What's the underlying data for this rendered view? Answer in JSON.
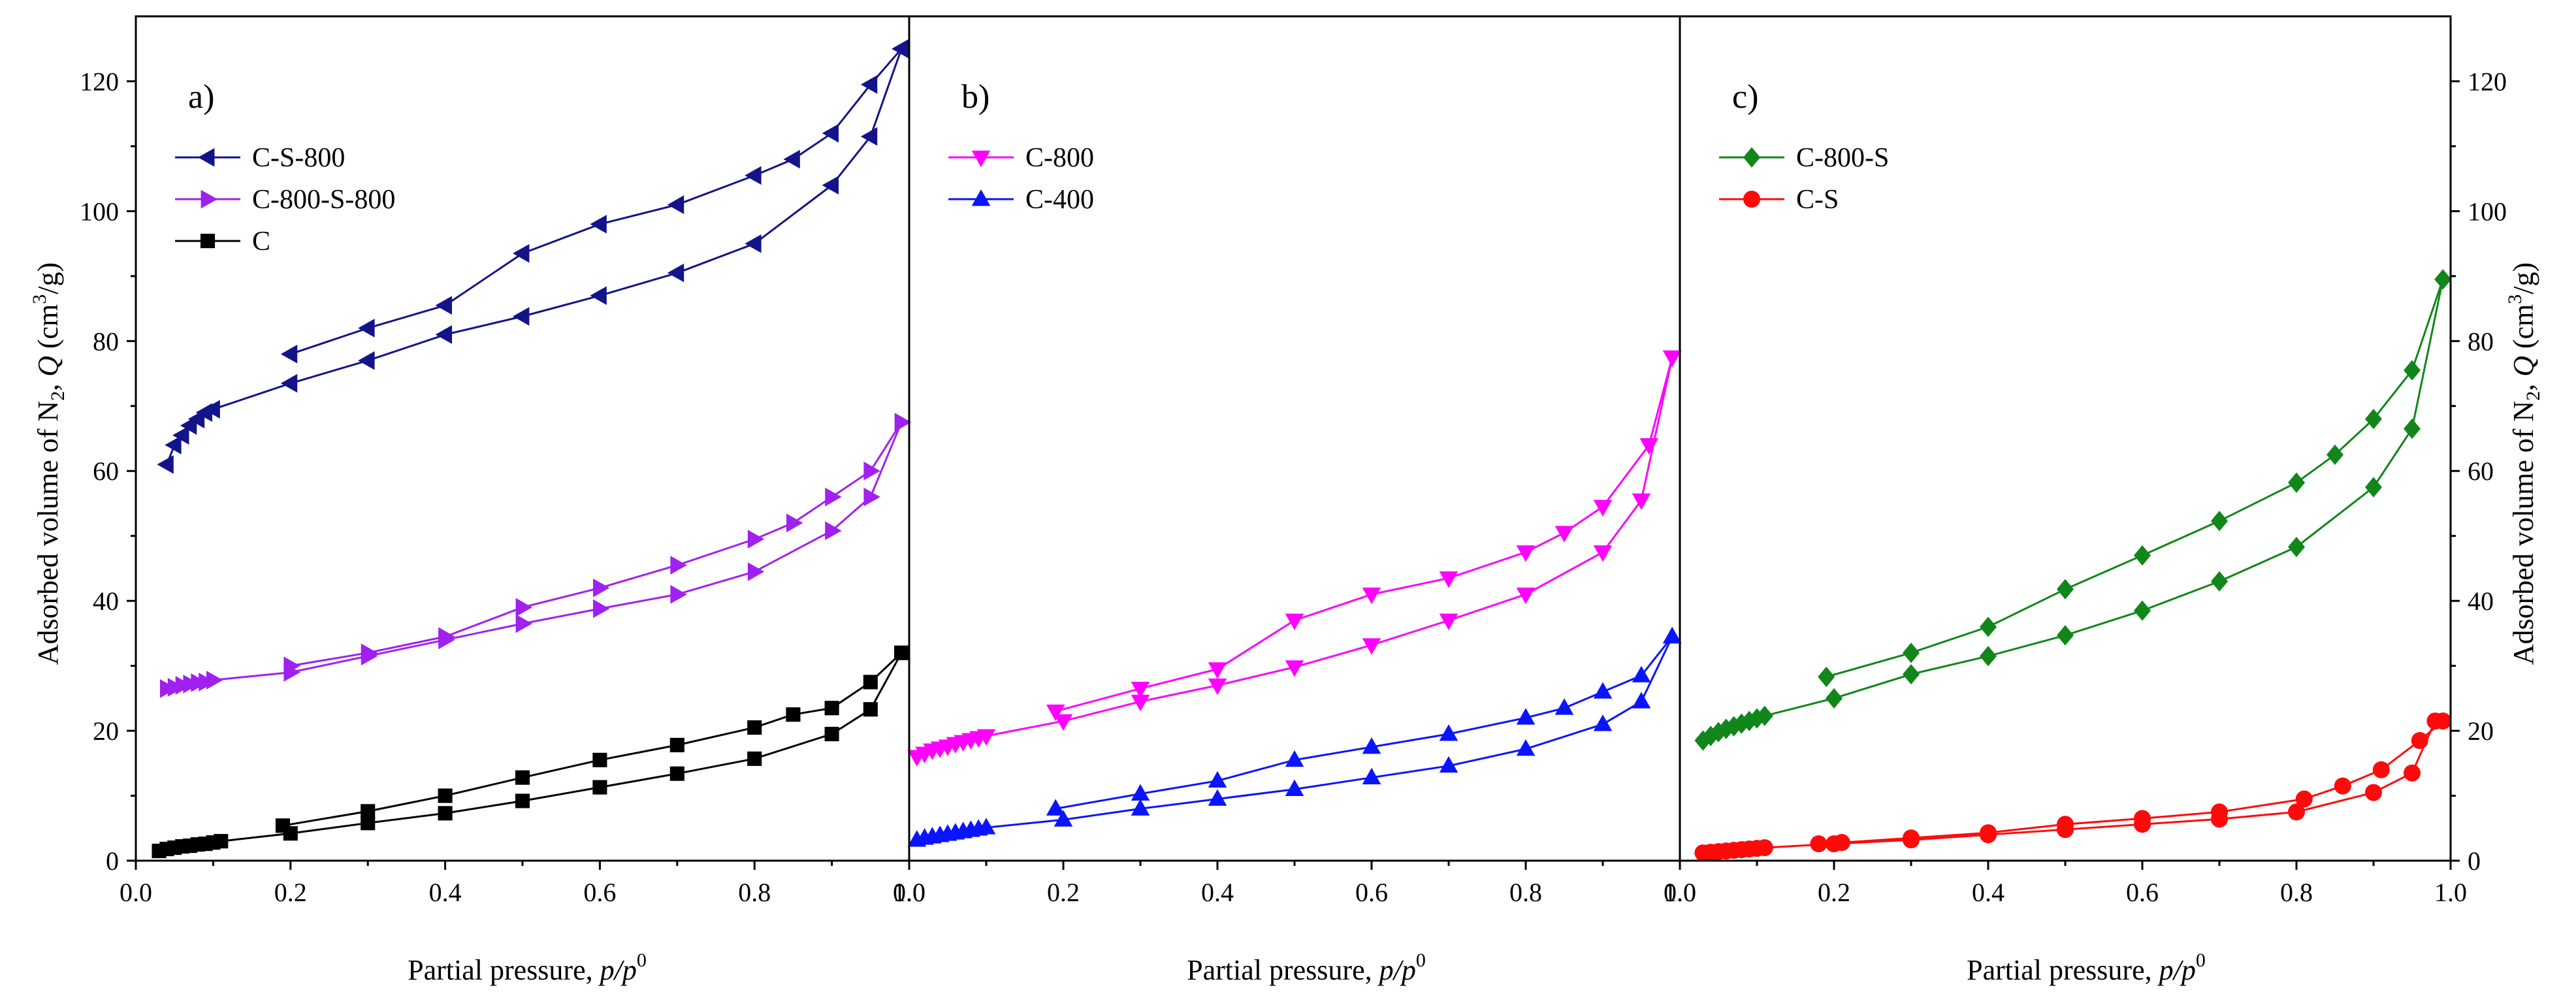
{
  "figure": {
    "x_axis_title_prefix": "Partial pressure, ",
    "x_axis_title_var": "p/p",
    "x_axis_title_sup": "0",
    "y_axis_title_prefix": "Adsorbed volume of N",
    "y_axis_title_sub": "2",
    "y_axis_title_mid": ", ",
    "y_axis_title_var": "Q",
    "y_axis_title_unit": " (cm",
    "y_axis_title_unit_sup": "3",
    "y_axis_title_unit_end": "/g)"
  },
  "chart_data": [
    {
      "type": "line",
      "panel_label": "a)",
      "xlabel": "Partial pressure, p/p0",
      "ylabel": "Adsorbed volume of N2, Q (cm3/g)",
      "xlim": [
        0.0,
        1.0
      ],
      "ylim": [
        0,
        130
      ],
      "xticks": [
        0.0,
        0.2,
        0.4,
        0.6,
        0.8,
        1.0
      ],
      "xtick_labels": [
        "0.0",
        "0.2",
        "0.4",
        "0.6",
        "0.8",
        "1.0"
      ],
      "yticks": [
        0,
        20,
        40,
        60,
        80,
        100,
        120
      ],
      "ytick_labels": [
        "0",
        "20",
        "40",
        "60",
        "80",
        "100",
        "120"
      ],
      "legend_position": "top-left",
      "series": [
        {
          "name": "C-S-800",
          "color": "#13138a",
          "marker": "triangle-left",
          "adsorption": {
            "x": [
              0.04,
              0.05,
              0.06,
              0.07,
              0.08,
              0.09,
              0.1,
              0.2,
              0.3,
              0.4,
              0.5,
              0.6,
              0.7,
              0.8,
              0.9,
              0.95,
              0.99
            ],
            "y": [
              61,
              64,
              65.5,
              67,
              68,
              69,
              69.5,
              73.5,
              77,
              81,
              83.8,
              87,
              90.5,
              95,
              104,
              111.5,
              125
            ]
          },
          "desorption": {
            "x": [
              0.99,
              0.95,
              0.9,
              0.85,
              0.8,
              0.7,
              0.6,
              0.5,
              0.4,
              0.3,
              0.2
            ],
            "y": [
              125,
              119.5,
              112,
              108,
              105.5,
              101,
              98,
              93.5,
              85.5,
              82,
              78
            ]
          }
        },
        {
          "name": "C-800-S-800",
          "color": "#a020f0",
          "marker": "triangle-right",
          "adsorption": {
            "x": [
              0.04,
              0.05,
              0.06,
              0.07,
              0.08,
              0.09,
              0.1,
              0.2,
              0.3,
              0.4,
              0.5,
              0.6,
              0.7,
              0.8,
              0.9,
              0.95,
              0.99
            ],
            "y": [
              26.5,
              26.7,
              27,
              27.2,
              27.4,
              27.5,
              27.8,
              29,
              31.5,
              34,
              36.5,
              38.8,
              41,
              44.5,
              50.8,
              56,
              67.5
            ]
          },
          "desorption": {
            "x": [
              0.99,
              0.95,
              0.9,
              0.85,
              0.8,
              0.7,
              0.6,
              0.5,
              0.4,
              0.3,
              0.2
            ],
            "y": [
              67.5,
              60,
              56,
              52,
              49.5,
              45.5,
              42,
              39,
              34.5,
              32,
              30
            ]
          }
        },
        {
          "name": "C",
          "color": "#000000",
          "marker": "square",
          "adsorption": {
            "x": [
              0.03,
              0.04,
              0.05,
              0.06,
              0.07,
              0.08,
              0.09,
              0.1,
              0.11,
              0.2,
              0.3,
              0.4,
              0.5,
              0.6,
              0.7,
              0.8,
              0.9,
              0.95,
              0.99
            ],
            "y": [
              1.5,
              1.8,
              2,
              2.2,
              2.3,
              2.5,
              2.6,
              2.8,
              3,
              4.2,
              5.8,
              7.3,
              9.2,
              11.3,
              13.4,
              15.7,
              19.5,
              23.3,
              32
            ]
          },
          "desorption": {
            "x": [
              0.99,
              0.95,
              0.9,
              0.85,
              0.8,
              0.7,
              0.6,
              0.5,
              0.4,
              0.3,
              0.19
            ],
            "y": [
              32,
              27.5,
              23.5,
              22.5,
              20.5,
              17.8,
              15.5,
              12.8,
              10,
              7.6,
              5.4
            ]
          }
        }
      ]
    },
    {
      "type": "line",
      "panel_label": "b)",
      "xlabel": "Partial pressure, p/p0",
      "xlim": [
        0.0,
        1.0
      ],
      "ylim": [
        0,
        130
      ],
      "xticks": [
        0.0,
        0.2,
        0.4,
        0.6,
        0.8,
        1.0
      ],
      "xtick_labels": [
        "0.0",
        "0.2",
        "0.4",
        "0.6",
        "0.8",
        "1.0"
      ],
      "legend_position": "top-left",
      "series": [
        {
          "name": "C-800",
          "color": "#ff00ff",
          "marker": "triangle-down",
          "adsorption": {
            "x": [
              0.01,
              0.02,
              0.03,
              0.04,
              0.05,
              0.06,
              0.07,
              0.08,
              0.09,
              0.1,
              0.2,
              0.3,
              0.4,
              0.5,
              0.6,
              0.7,
              0.8,
              0.9,
              0.95,
              0.99
            ],
            "y": [
              16,
              16.5,
              17,
              17.3,
              17.6,
              18,
              18.3,
              18.6,
              18.9,
              19.2,
              21.5,
              24.5,
              27,
              29.8,
              33.2,
              37,
              41,
              47.5,
              55.5,
              77.5
            ]
          },
          "desorption": {
            "x": [
              0.99,
              0.96,
              0.9,
              0.85,
              0.8,
              0.7,
              0.6,
              0.5,
              0.4,
              0.3,
              0.19
            ],
            "y": [
              77.5,
              64,
              54.5,
              50.5,
              47.5,
              43.5,
              41,
              37,
              29.5,
              26.5,
              23
            ]
          }
        },
        {
          "name": "C-400",
          "color": "#0a14ff",
          "marker": "triangle-up",
          "adsorption": {
            "x": [
              0.01,
              0.02,
              0.03,
              0.04,
              0.05,
              0.06,
              0.07,
              0.08,
              0.09,
              0.1,
              0.2,
              0.3,
              0.4,
              0.5,
              0.6,
              0.7,
              0.8,
              0.9,
              0.95,
              0.99
            ],
            "y": [
              3.2,
              3.5,
              3.7,
              3.9,
              4.1,
              4.3,
              4.5,
              4.7,
              4.9,
              5.1,
              6.3,
              8,
              9.5,
              11,
              12.8,
              14.6,
              17.2,
              21,
              24.5,
              34.5
            ]
          },
          "desorption": {
            "x": [
              0.99,
              0.95,
              0.9,
              0.85,
              0.8,
              0.7,
              0.6,
              0.5,
              0.4,
              0.3,
              0.19
            ],
            "y": [
              34.5,
              28.5,
              26,
              23.5,
              22,
              19.5,
              17.5,
              15.5,
              12.3,
              10.3,
              8
            ]
          }
        }
      ]
    },
    {
      "type": "line",
      "panel_label": "c)",
      "xlabel": "Partial pressure, p/p0",
      "ylabel": "Adsorbed volume of N2, Q (cm3/g)",
      "xlim": [
        0.0,
        1.0
      ],
      "ylim": [
        0,
        130
      ],
      "xticks": [
        0.0,
        0.2,
        0.4,
        0.6,
        0.8,
        1.0
      ],
      "xtick_labels": [
        "0.0",
        "0.2",
        "0.4",
        "0.6",
        "0.8",
        "1.0"
      ],
      "yticks": [
        0,
        20,
        40,
        60,
        80,
        100,
        120
      ],
      "ytick_labels": [
        "0",
        "20",
        "40",
        "60",
        "80",
        "100",
        "120"
      ],
      "legend_position": "top-left",
      "series": [
        {
          "name": "C-800-S",
          "color": "#11861a",
          "marker": "diamond",
          "adsorption": {
            "x": [
              0.03,
              0.04,
              0.05,
              0.06,
              0.07,
              0.08,
              0.09,
              0.1,
              0.11,
              0.2,
              0.3,
              0.4,
              0.5,
              0.6,
              0.7,
              0.8,
              0.9,
              0.95,
              0.99
            ],
            "y": [
              18.5,
              19.2,
              19.8,
              20.3,
              20.7,
              21.1,
              21.5,
              21.9,
              22.3,
              25,
              28.7,
              31.5,
              34.7,
              38.5,
              43,
              48.3,
              57.5,
              66.5,
              89.5
            ]
          },
          "desorption": {
            "x": [
              0.99,
              0.95,
              0.9,
              0.85,
              0.8,
              0.7,
              0.6,
              0.5,
              0.4,
              0.3,
              0.19
            ],
            "y": [
              89.5,
              75.5,
              68,
              62.5,
              58.2,
              52.3,
              47,
              41.8,
              36,
              32,
              28.3
            ]
          }
        },
        {
          "name": "C-S",
          "color": "#ff0a0a",
          "marker": "circle",
          "adsorption": {
            "x": [
              0.03,
              0.04,
              0.05,
              0.06,
              0.07,
              0.08,
              0.09,
              0.1,
              0.11,
              0.2,
              0.3,
              0.4,
              0.5,
              0.6,
              0.7,
              0.8,
              0.9,
              0.95,
              0.98
            ],
            "y": [
              1.2,
              1.3,
              1.4,
              1.5,
              1.6,
              1.7,
              1.8,
              1.9,
              2,
              2.6,
              3.2,
              4,
              4.8,
              5.6,
              6.4,
              7.5,
              10.5,
              13.5,
              21.5
            ]
          },
          "desorption": {
            "x": [
              0.99,
              0.96,
              0.91,
              0.86,
              0.81,
              0.7,
              0.6,
              0.5,
              0.4,
              0.3,
              0.21,
              0.18
            ],
            "y": [
              21.5,
              18.5,
              14,
              11.5,
              9.5,
              7.5,
              6.5,
              5.6,
              4.3,
              3.5,
              2.8,
              2.6
            ]
          }
        }
      ]
    }
  ]
}
